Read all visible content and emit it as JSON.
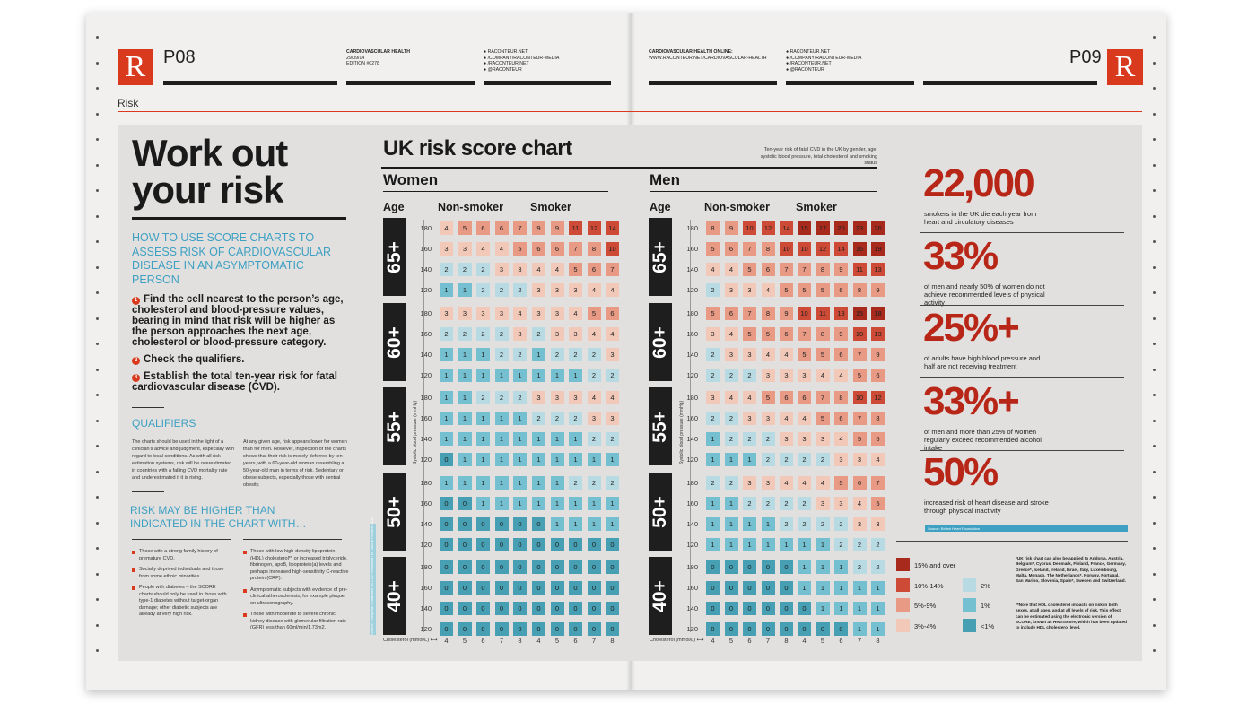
{
  "header": {
    "left_page": "P08",
    "right_page": "P09",
    "logo_letter": "R",
    "pub_title": "CARDIOVASCULAR HEALTH",
    "pub_date": "29/09/14",
    "pub_edition": "EDITION #0278",
    "left_links": [
      "RACONTEUR.NET",
      "/COMPANY/RACONTEUR-MEDIA",
      "/RACONTEUR.NET",
      "@RACONTEUR"
    ],
    "online_title": "CARDIOVASCULAR HEALTH ONLINE:",
    "online_url": "WWW.RACONTEUR.NET/CARDIOVASCULAR-HEALTH",
    "right_links": [
      "RACONTEUR.NET",
      "/COMPANY/RACONTEUR-MEDIA",
      "/RACONTEUR.NET",
      "@RACONTEUR"
    ]
  },
  "section": "Risk",
  "left": {
    "title": "Work out your risk",
    "howto": "HOW TO USE SCORE CHARTS TO ASSESS RISK OF CARDIOVASCULAR DISEASE IN AN ASYMPTOMATIC PERSON",
    "steps": [
      "Find the cell nearest to the person’s age, cholesterol and blood-pressure values, bearing in mind that risk will be higher as the person approaches the next age, cholesterol or blood-pressure category.",
      "Check the qualifiers.",
      "Establish the total ten-year risk for fatal cardiovascular disease (CVD)."
    ],
    "qualifiers_head": "QUALIFIERS",
    "qual_col1": "The charts should be used in the light of a clinician’s advice and judgment, especially with regard to local conditions. As with all risk estimation systems, risk will be overestimated in countries with a falling CVD mortality rate and underestimated if it is rising.",
    "qual_col2": "At any given age, risk appears lower for women than for men. However, inspection of the charts shows that their risk is merely deferred by ten years, with a 60-year-old woman resembling a 50-year-old man in terms of risk. Sedentary or obese subjects, especially those with central obesity.",
    "higher_head": "RISK MAY BE HIGHER THAN INDICATED IN THE CHART WITH…",
    "bullets_col1": [
      "Those with a strong family history of premature CVD.",
      "Socially deprived individuals and those from some ethnic minorities.",
      "People with diabetes – the SCORE charts should only be used in those with type-1 diabetes without target-organ damage; other diabetic subjects are already at very high risk."
    ],
    "bullets_col2": [
      "Those with low high-density lipoprotein (HDL) cholesterol** or increased triglyceride, fibrinogen, apoB, lipoprotein(a) levels and perhaps increased high-sensitivity C-reactive protein (CRP).",
      "Asymptomatic subjects with evidence of pre-clinical atherosclerosis, for example plaque on ultrasonography.",
      "Those with moderate to severe chronic kidney disease with glomerular filtration rate (GFR) less than 60ml/min/1.73m2."
    ]
  },
  "chart_data": {
    "type": "heatmap",
    "title": "UK risk score chart",
    "subtitle": "Ten-year risk of fatal CVD in the UK by gender, age, systolic blood pressure, total cholesterol and smoking status",
    "ylabel": "Systolic blood pressure (mmHg)",
    "xlabel": "Cholesterol (mmol/L)",
    "age_label": "Age",
    "cholesterol": [
      4,
      5,
      6,
      7,
      8
    ],
    "bp": [
      180,
      160,
      140,
      120
    ],
    "ages": [
      "65+",
      "60+",
      "55+",
      "50+",
      "40+"
    ],
    "panels": [
      {
        "sex": "Women",
        "smoking": "Non-smoker",
        "grid": [
          [
            [
              4,
              5,
              6,
              6,
              7
            ],
            [
              3,
              3,
              4,
              4,
              5
            ],
            [
              2,
              2,
              2,
              3,
              3
            ],
            [
              1,
              1,
              2,
              2,
              2
            ]
          ],
          [
            [
              3,
              3,
              3,
              3,
              4
            ],
            [
              2,
              2,
              2,
              2,
              3
            ],
            [
              1,
              1,
              1,
              2,
              2
            ],
            [
              1,
              1,
              1,
              1,
              1
            ]
          ],
          [
            [
              1,
              1,
              2,
              2,
              2
            ],
            [
              1,
              1,
              1,
              1,
              1
            ],
            [
              1,
              1,
              1,
              1,
              1
            ],
            [
              0,
              1,
              1,
              1,
              1
            ]
          ],
          [
            [
              1,
              1,
              1,
              1,
              1
            ],
            [
              0,
              0,
              1,
              1,
              1
            ],
            [
              0,
              0,
              0,
              0,
              0
            ],
            [
              0,
              0,
              0,
              0,
              0
            ]
          ],
          [
            [
              0,
              0,
              0,
              0,
              0
            ],
            [
              0,
              0,
              0,
              0,
              0
            ],
            [
              0,
              0,
              0,
              0,
              0
            ],
            [
              0,
              0,
              0,
              0,
              0
            ]
          ]
        ]
      },
      {
        "sex": "Women",
        "smoking": "Smoker",
        "grid": [
          [
            [
              9,
              9,
              11,
              12,
              14
            ],
            [
              6,
              6,
              7,
              8,
              10
            ],
            [
              4,
              4,
              5,
              6,
              7
            ],
            [
              3,
              3,
              3,
              4,
              4
            ]
          ],
          [
            [
              3,
              3,
              4,
              5,
              6
            ],
            [
              2,
              3,
              3,
              4,
              4
            ],
            [
              1,
              2,
              2,
              2,
              3
            ],
            [
              1,
              1,
              1,
              2,
              2
            ]
          ],
          [
            [
              3,
              3,
              3,
              4,
              4
            ],
            [
              2,
              2,
              2,
              3,
              3
            ],
            [
              1,
              1,
              1,
              2,
              2
            ],
            [
              1,
              1,
              1,
              1,
              1
            ]
          ],
          [
            [
              1,
              1,
              2,
              2,
              2
            ],
            [
              1,
              1,
              1,
              1,
              1
            ],
            [
              0,
              1,
              1,
              1,
              1
            ],
            [
              0,
              0,
              0,
              0,
              0
            ]
          ],
          [
            [
              0,
              0,
              0,
              0,
              0
            ],
            [
              0,
              0,
              0,
              0,
              0
            ],
            [
              0,
              0,
              0,
              0,
              0
            ],
            [
              0,
              0,
              0,
              0,
              0
            ]
          ]
        ]
      },
      {
        "sex": "Men",
        "smoking": "Non-smoker",
        "grid": [
          [
            [
              8,
              9,
              10,
              12,
              14
            ],
            [
              5,
              6,
              7,
              8,
              10
            ],
            [
              4,
              4,
              5,
              6,
              7
            ],
            [
              2,
              3,
              3,
              4,
              5
            ]
          ],
          [
            [
              5,
              6,
              7,
              8,
              9
            ],
            [
              3,
              4,
              5,
              5,
              6
            ],
            [
              2,
              3,
              3,
              4,
              4
            ],
            [
              2,
              2,
              2,
              3,
              3
            ]
          ],
          [
            [
              3,
              4,
              4,
              5,
              6
            ],
            [
              2,
              2,
              3,
              3,
              4
            ],
            [
              1,
              2,
              2,
              2,
              3
            ],
            [
              1,
              1,
              1,
              2,
              2
            ]
          ],
          [
            [
              2,
              2,
              3,
              3,
              4
            ],
            [
              1,
              1,
              2,
              2,
              2
            ],
            [
              1,
              1,
              1,
              1,
              2
            ],
            [
              1,
              1,
              1,
              1,
              1
            ]
          ],
          [
            [
              0,
              0,
              0,
              0,
              0
            ],
            [
              0,
              0,
              0,
              0,
              0
            ],
            [
              0,
              0,
              0,
              0,
              0
            ],
            [
              0,
              0,
              0,
              0,
              0
            ]
          ]
        ]
      },
      {
        "sex": "Men",
        "smoking": "Smoker",
        "grid": [
          [
            [
              15,
              17,
              20,
              23,
              26
            ],
            [
              10,
              12,
              14,
              16,
              19
            ],
            [
              7,
              8,
              9,
              11,
              13
            ],
            [
              5,
              5,
              6,
              8,
              9
            ]
          ],
          [
            [
              10,
              11,
              13,
              15,
              18
            ],
            [
              7,
              8,
              9,
              10,
              13
            ],
            [
              5,
              5,
              6,
              7,
              9
            ],
            [
              3,
              4,
              4,
              5,
              6
            ]
          ],
          [
            [
              6,
              7,
              8,
              10,
              12
            ],
            [
              4,
              5,
              6,
              7,
              8
            ],
            [
              3,
              3,
              4,
              5,
              6
            ],
            [
              2,
              2,
              3,
              3,
              4
            ]
          ],
          [
            [
              4,
              4,
              5,
              6,
              7
            ],
            [
              2,
              3,
              3,
              4,
              5
            ],
            [
              2,
              2,
              2,
              3,
              3
            ],
            [
              1,
              1,
              2,
              2,
              2
            ]
          ],
          [
            [
              1,
              1,
              1,
              2,
              2
            ],
            [
              1,
              1,
              1,
              1,
              1
            ],
            [
              0,
              1,
              1,
              1,
              1
            ],
            [
              0,
              0,
              0,
              1,
              1
            ]
          ]
        ]
      }
    ],
    "colors": {
      "15+": "#a82a1c",
      "10-14": "#cd4a36",
      "5-9": "#e89a84",
      "3-4": "#f2c9b8",
      "2": "#b8dbe3",
      "1": "#74c0d0",
      "0": "#479fb3"
    }
  },
  "stats": [
    {
      "value": "22,000",
      "label": "smokers in the UK die each year from heart and circulatory diseases"
    },
    {
      "value": "33%",
      "label": "of men and nearly 50% of women do not achieve recommended levels of physical activity"
    },
    {
      "value": "25%+",
      "label": "of adults have high blood pressure and half are not receiving treatment"
    },
    {
      "value": "33%+",
      "label": "of men and more than 25% of women regularly exceed recommended alcohol intake"
    },
    {
      "value": "50%",
      "label": "increased risk of heart disease and stroke through physical inactivity"
    }
  ],
  "source": "Source: British Heart Foundation",
  "legend": [
    {
      "label": "15% and over",
      "color": "#a82a1c"
    },
    {
      "label": "10%-14%",
      "color": "#cd4a36"
    },
    {
      "label": "5%-9%",
      "color": "#e89a84"
    },
    {
      "label": "3%-4%",
      "color": "#f2c9b8"
    },
    {
      "label": "2%",
      "color": "#b8dbe3"
    },
    {
      "label": "1%",
      "color": "#74c0d0"
    },
    {
      "label": "<1%",
      "color": "#479fb3"
    }
  ],
  "note1": "*UK risk chart can also be applied to Andorra, Austria, Belgium*, Cyprus, Denmark, Finland, France, Germany, Greece*, Iceland, Ireland, Israel, Italy, Luxembourg, Malta, Monaco, The Netherlands*, Norway, Portugal, San Marino, Slovenia, Spain*, Sweden and Switzerland.",
  "note2": "**Note that HDL cholesterol impacts on risk in both sexes, at all ages, and at all levels of risk. This effect can be estimated using the electronic version of SCORE, known as HeartScore, which has been updated to include HDL cholesterol level.",
  "vertical_credit": "Source: European Guidelines on CVD Prevention in Clinical Practice 2012"
}
